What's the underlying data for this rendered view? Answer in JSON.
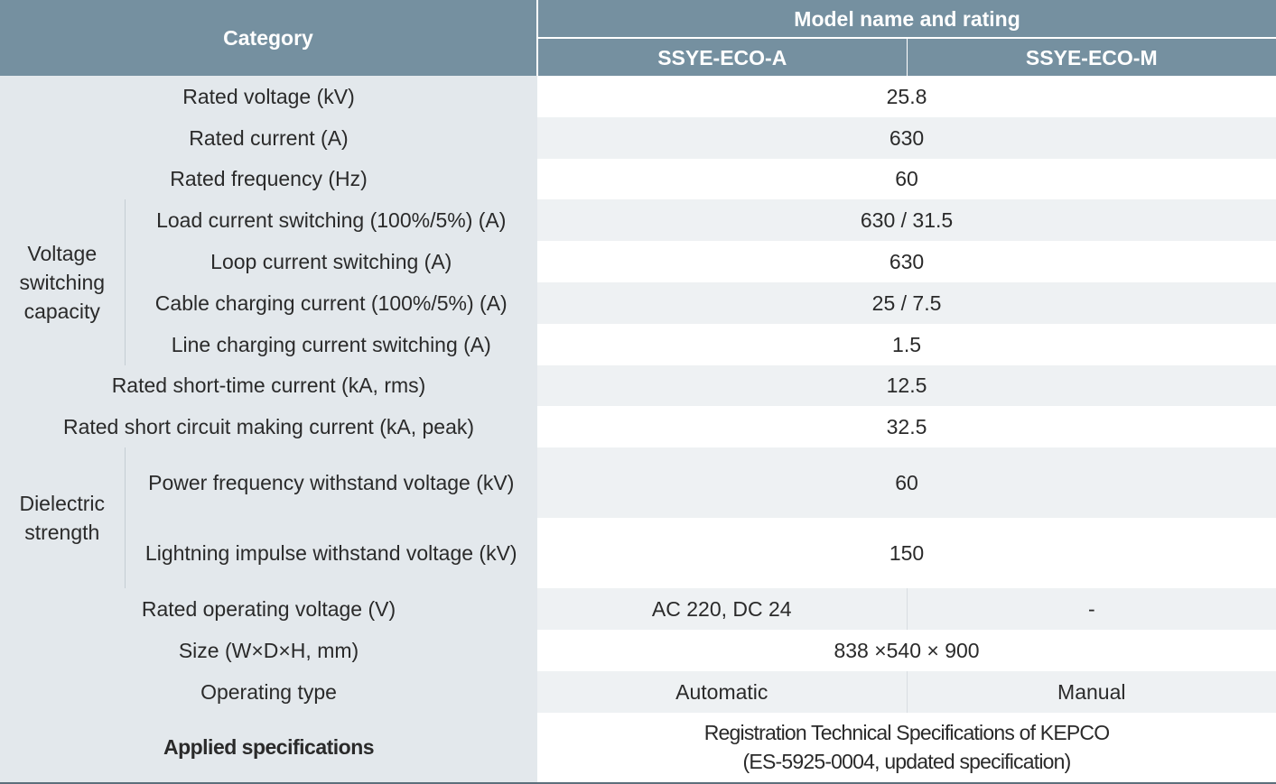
{
  "header": {
    "category": "Category",
    "group": "Model name and rating",
    "models": [
      "SSYE-ECO-A",
      "SSYE-ECO-M"
    ]
  },
  "rows": {
    "rated_voltage": {
      "label": "Rated voltage (kV)",
      "value": "25.8"
    },
    "rated_current": {
      "label": "Rated current (A)",
      "value": "630"
    },
    "rated_frequency": {
      "label": "Rated frequency (Hz)",
      "value": "60"
    },
    "voltage_switching": {
      "group": "Voltage switching capacity",
      "items": [
        {
          "label": "Load current switching (100%/5%) (A)",
          "value": "630 / 31.5"
        },
        {
          "label": "Loop current switching (A)",
          "value": "630"
        },
        {
          "label": "Cable charging current (100%/5%) (A)",
          "value": "25 / 7.5"
        },
        {
          "label": "Line charging current switching (A)",
          "value": "1.5"
        }
      ]
    },
    "short_time_current": {
      "label": "Rated short-time current (kA, rms)",
      "value": "12.5"
    },
    "making_current": {
      "label": "Rated short circuit making current (kA, peak)",
      "value": "32.5"
    },
    "dielectric": {
      "group": "Dielectric strength",
      "items": [
        {
          "label": "Power frequency withstand voltage (kV)",
          "value": "60"
        },
        {
          "label": "Lightning impulse withstand voltage (kV)",
          "value": "150"
        }
      ]
    },
    "operating_voltage": {
      "label": "Rated operating voltage (V)",
      "value_a": "AC 220, DC 24",
      "value_m": "-"
    },
    "size": {
      "label": "Size (W×D×H, mm)",
      "value": "838 ×540 × 900"
    },
    "operating_type": {
      "label": "Operating type",
      "value_a": "Automatic",
      "value_m": "Manual"
    },
    "applied_spec": {
      "label": "Applied specifications",
      "value_line1": "Registration Technical Specifications of KEPCO",
      "value_line2": "(ES-5925-0004, updated specification)"
    }
  },
  "colors": {
    "header_bg": "#7590a0",
    "label_bg": "#e3e8ec",
    "alt_row_bg": "#eef1f3",
    "header_text": "#ffffff"
  }
}
